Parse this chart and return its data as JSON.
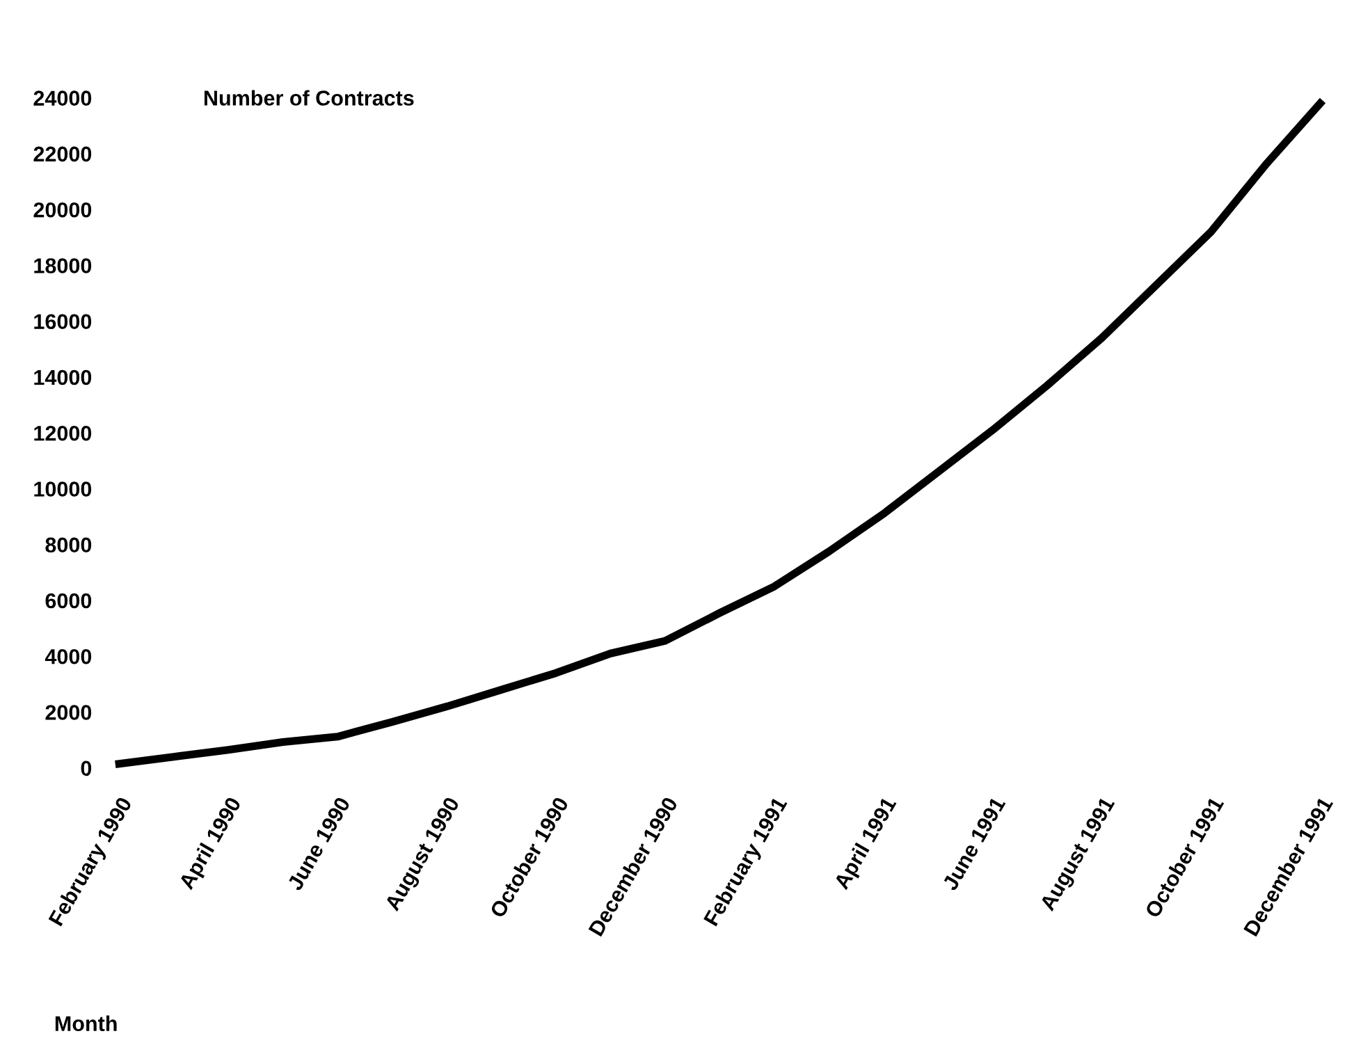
{
  "chart_data": {
    "type": "line",
    "ylabel": "Number of Contracts",
    "xlabel": "Month",
    "categories": [
      "February 1990",
      null,
      "April 1990",
      null,
      "June 1990",
      null,
      "August 1990",
      null,
      "October 1990",
      null,
      "December 1990",
      null,
      "February 1991",
      null,
      "April 1991",
      null,
      "June 1991",
      null,
      "August 1991",
      null,
      "October 1991",
      null,
      "December 1991"
    ],
    "series": [
      {
        "color": "#000000",
        "values": [
          150,
          400,
          650,
          930,
          1120,
          1650,
          2200,
          2800,
          3400,
          4100,
          4550,
          5550,
          6500,
          7750,
          9100,
          10600,
          12100,
          13700,
          15400,
          17300,
          19200,
          21600,
          23800
        ]
      }
    ],
    "ylim": [
      0,
      24000
    ],
    "yticks": [
      0,
      2000,
      4000,
      6000,
      8000,
      10000,
      12000,
      14000,
      16000,
      18000,
      20000,
      22000,
      24000
    ],
    "grid": false,
    "legend": false,
    "marker": "none",
    "line_style": "solid"
  }
}
